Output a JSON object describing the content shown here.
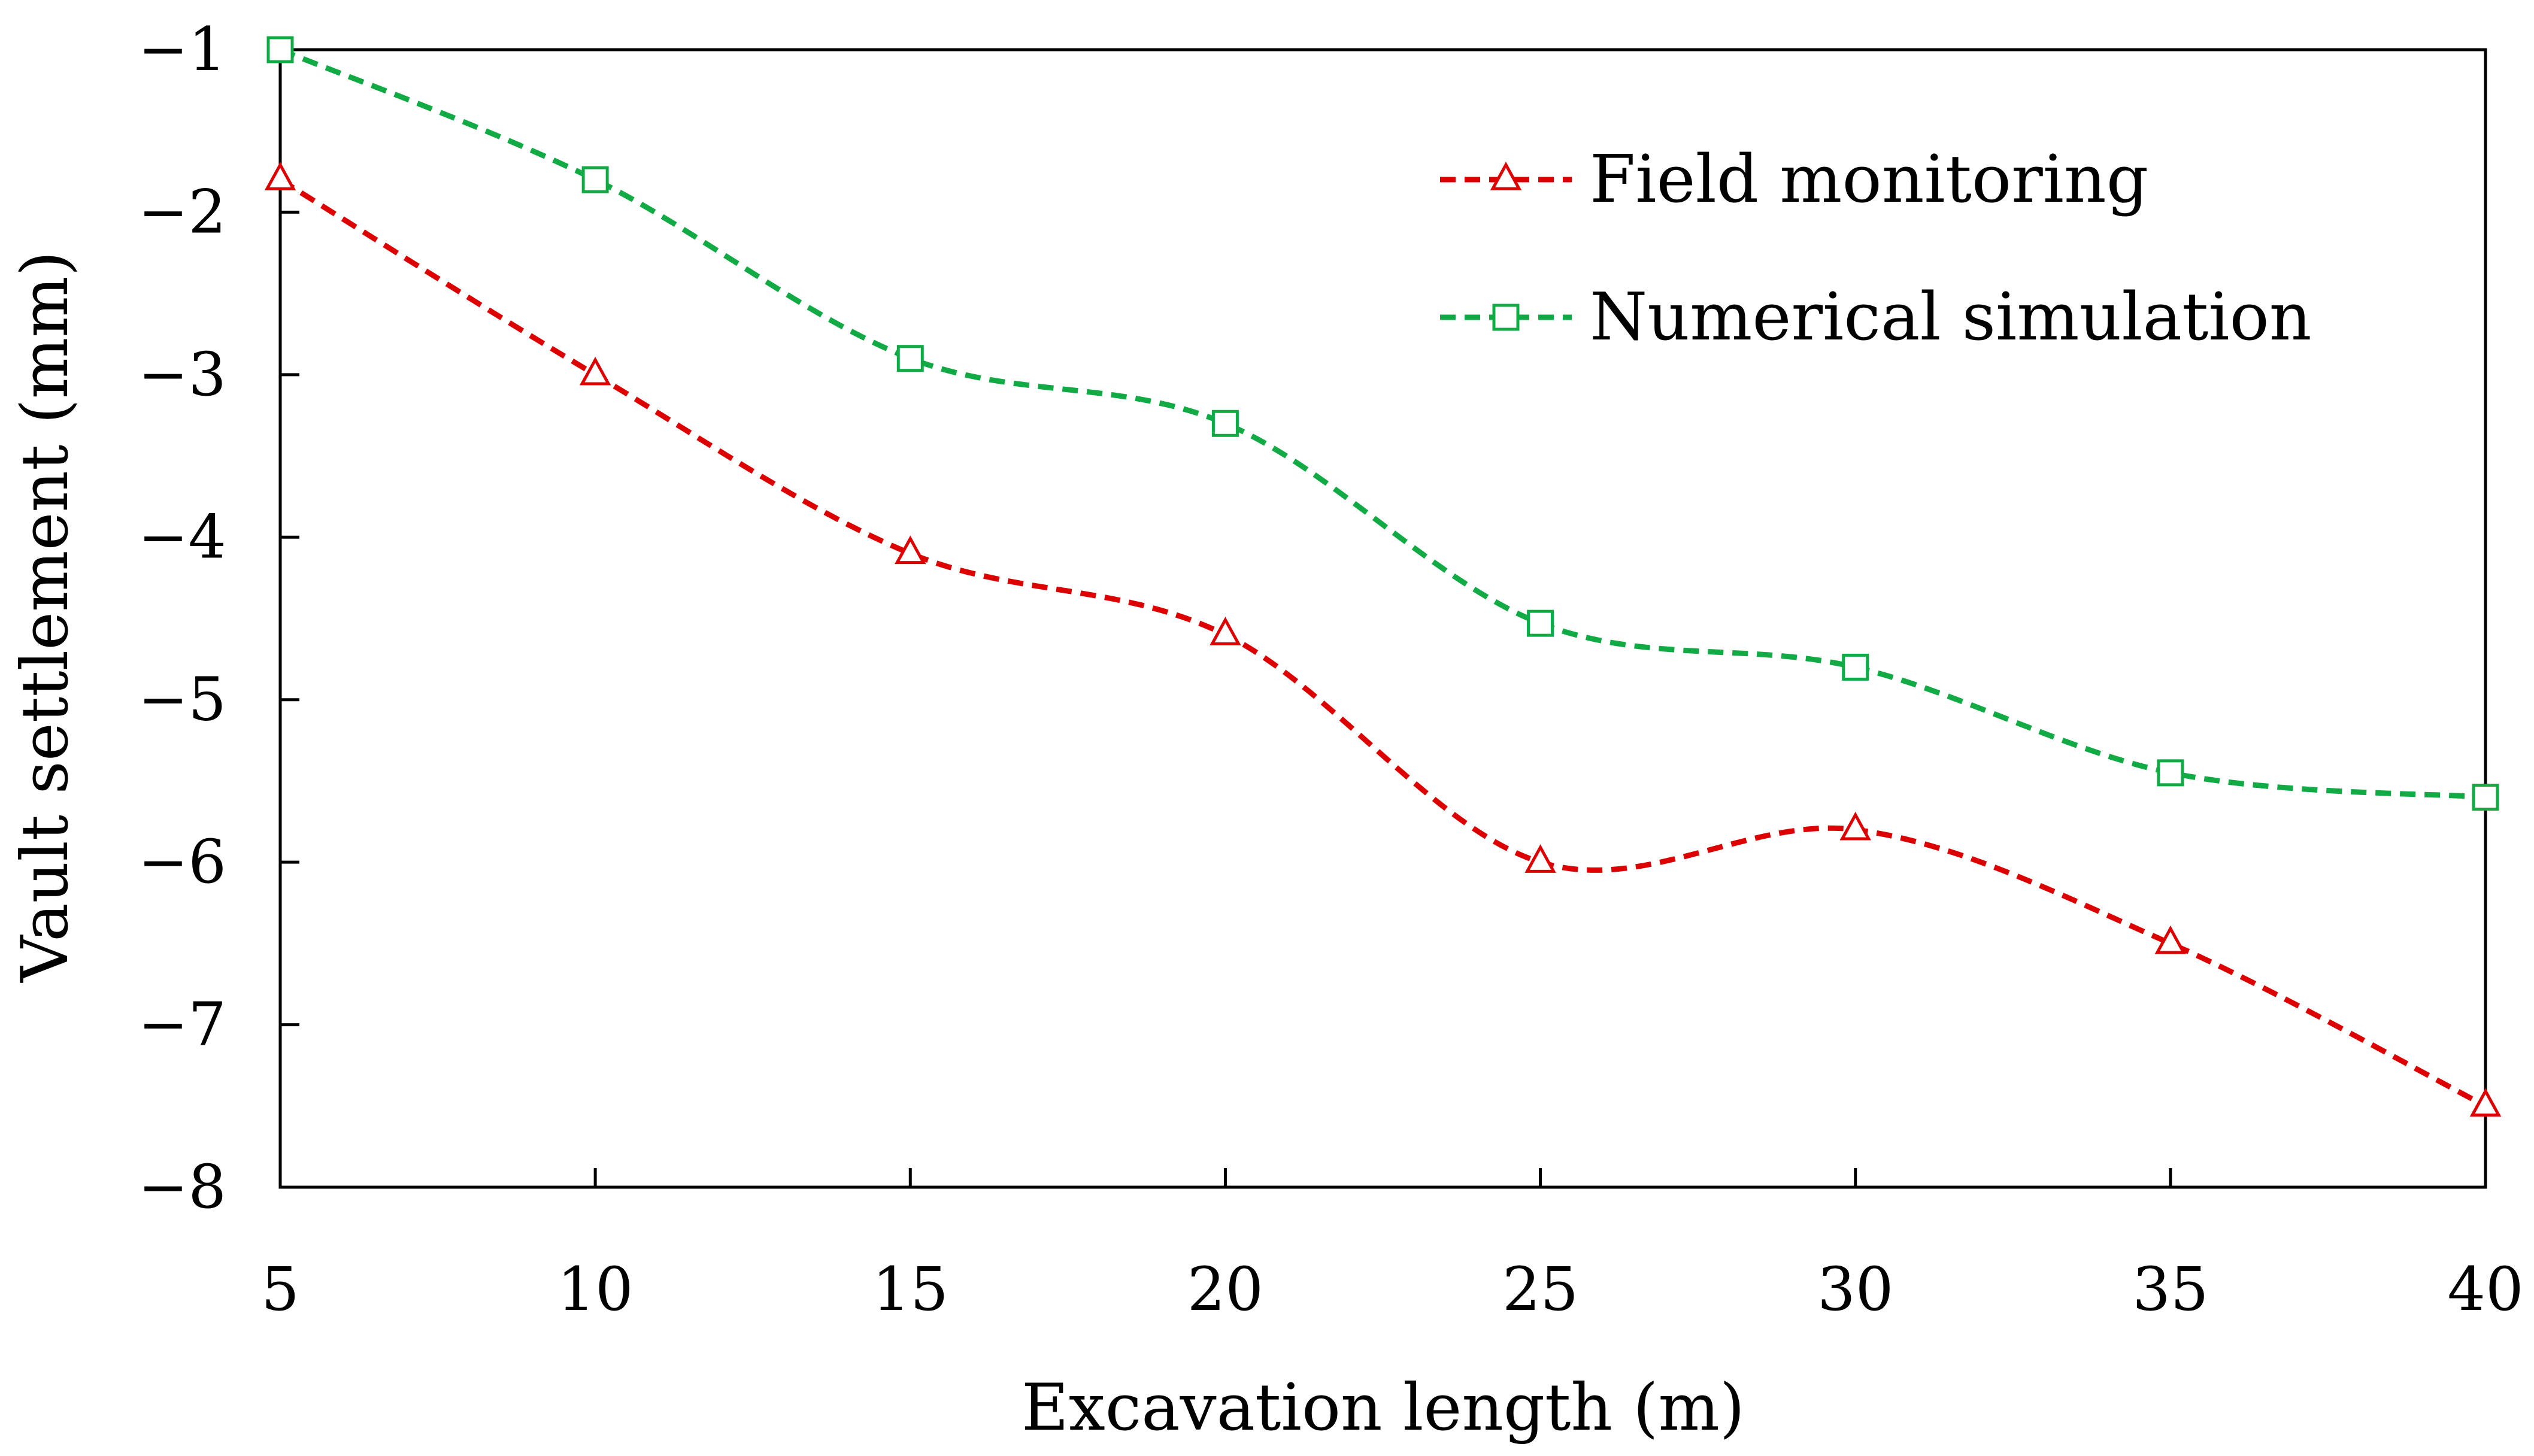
{
  "chart_data": {
    "type": "line",
    "title": "",
    "xlabel": "Excavation length (m)",
    "ylabel": "Vault  settlement (mm)",
    "xlim": [
      5,
      40
    ],
    "ylim": [
      -8,
      -1
    ],
    "x_ticks": [
      5,
      10,
      15,
      20,
      25,
      30,
      35,
      40
    ],
    "y_ticks": [
      -1,
      -2,
      -3,
      -4,
      -5,
      -6,
      -7,
      -8
    ],
    "x_tick_labels": [
      "5",
      "10",
      "15",
      "20",
      "25",
      "30",
      "35",
      "40"
    ],
    "y_tick_labels": [
      "−1",
      "−2",
      "−3",
      "−4",
      "−5",
      "−6",
      "−7",
      "−8"
    ],
    "grid": false,
    "legend_position": "top-right",
    "x": [
      5,
      10,
      15,
      20,
      25,
      30,
      35,
      40
    ],
    "series": [
      {
        "name": "Field monitoring",
        "marker": "triangle",
        "color": "#dd0000",
        "line_style": "dashed",
        "values": [
          -1.8,
          -3.0,
          -4.1,
          -4.6,
          -6.0,
          -5.8,
          -6.5,
          -7.5
        ]
      },
      {
        "name": "Numerical simulation",
        "marker": "square",
        "color": "#11aa44",
        "line_style": "dashed",
        "values": [
          -1.0,
          -1.8,
          -2.9,
          -3.3,
          -4.53,
          -4.8,
          -5.45,
          -5.6
        ]
      }
    ]
  }
}
